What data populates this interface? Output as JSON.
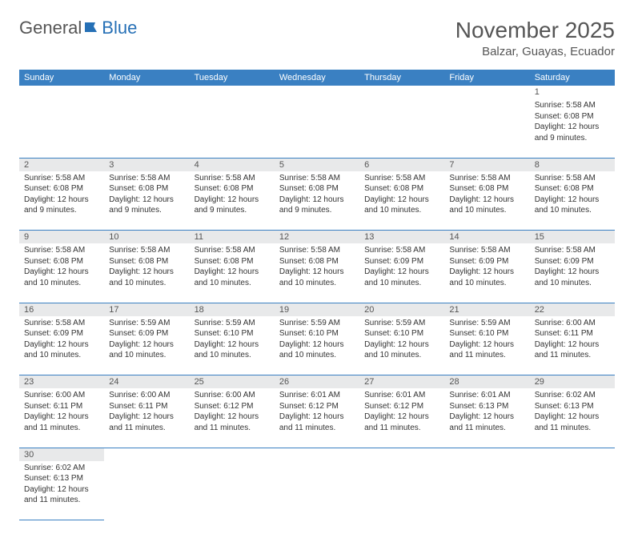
{
  "logo": {
    "text_a": "General",
    "text_b": "Blue"
  },
  "title": "November 2025",
  "location": "Balzar, Guayas, Ecuador",
  "colors": {
    "header_bg": "#3a80c2",
    "header_text": "#ffffff",
    "daynum_bg": "#e8e9ea",
    "row_divider": "#3a80c2",
    "text": "#333333",
    "title_text": "#555555",
    "logo_blue": "#2670b6"
  },
  "day_headers": [
    "Sunday",
    "Monday",
    "Tuesday",
    "Wednesday",
    "Thursday",
    "Friday",
    "Saturday"
  ],
  "layout": {
    "cols": 7,
    "rows": 6,
    "month_start_col": 6
  },
  "days": [
    {
      "n": 1,
      "sr": "5:58 AM",
      "ss": "6:08 PM",
      "dl": "12 hours and 9 minutes."
    },
    {
      "n": 2,
      "sr": "5:58 AM",
      "ss": "6:08 PM",
      "dl": "12 hours and 9 minutes."
    },
    {
      "n": 3,
      "sr": "5:58 AM",
      "ss": "6:08 PM",
      "dl": "12 hours and 9 minutes."
    },
    {
      "n": 4,
      "sr": "5:58 AM",
      "ss": "6:08 PM",
      "dl": "12 hours and 9 minutes."
    },
    {
      "n": 5,
      "sr": "5:58 AM",
      "ss": "6:08 PM",
      "dl": "12 hours and 9 minutes."
    },
    {
      "n": 6,
      "sr": "5:58 AM",
      "ss": "6:08 PM",
      "dl": "12 hours and 10 minutes."
    },
    {
      "n": 7,
      "sr": "5:58 AM",
      "ss": "6:08 PM",
      "dl": "12 hours and 10 minutes."
    },
    {
      "n": 8,
      "sr": "5:58 AM",
      "ss": "6:08 PM",
      "dl": "12 hours and 10 minutes."
    },
    {
      "n": 9,
      "sr": "5:58 AM",
      "ss": "6:08 PM",
      "dl": "12 hours and 10 minutes."
    },
    {
      "n": 10,
      "sr": "5:58 AM",
      "ss": "6:08 PM",
      "dl": "12 hours and 10 minutes."
    },
    {
      "n": 11,
      "sr": "5:58 AM",
      "ss": "6:08 PM",
      "dl": "12 hours and 10 minutes."
    },
    {
      "n": 12,
      "sr": "5:58 AM",
      "ss": "6:08 PM",
      "dl": "12 hours and 10 minutes."
    },
    {
      "n": 13,
      "sr": "5:58 AM",
      "ss": "6:09 PM",
      "dl": "12 hours and 10 minutes."
    },
    {
      "n": 14,
      "sr": "5:58 AM",
      "ss": "6:09 PM",
      "dl": "12 hours and 10 minutes."
    },
    {
      "n": 15,
      "sr": "5:58 AM",
      "ss": "6:09 PM",
      "dl": "12 hours and 10 minutes."
    },
    {
      "n": 16,
      "sr": "5:58 AM",
      "ss": "6:09 PM",
      "dl": "12 hours and 10 minutes."
    },
    {
      "n": 17,
      "sr": "5:59 AM",
      "ss": "6:09 PM",
      "dl": "12 hours and 10 minutes."
    },
    {
      "n": 18,
      "sr": "5:59 AM",
      "ss": "6:10 PM",
      "dl": "12 hours and 10 minutes."
    },
    {
      "n": 19,
      "sr": "5:59 AM",
      "ss": "6:10 PM",
      "dl": "12 hours and 10 minutes."
    },
    {
      "n": 20,
      "sr": "5:59 AM",
      "ss": "6:10 PM",
      "dl": "12 hours and 10 minutes."
    },
    {
      "n": 21,
      "sr": "5:59 AM",
      "ss": "6:10 PM",
      "dl": "12 hours and 11 minutes."
    },
    {
      "n": 22,
      "sr": "6:00 AM",
      "ss": "6:11 PM",
      "dl": "12 hours and 11 minutes."
    },
    {
      "n": 23,
      "sr": "6:00 AM",
      "ss": "6:11 PM",
      "dl": "12 hours and 11 minutes."
    },
    {
      "n": 24,
      "sr": "6:00 AM",
      "ss": "6:11 PM",
      "dl": "12 hours and 11 minutes."
    },
    {
      "n": 25,
      "sr": "6:00 AM",
      "ss": "6:12 PM",
      "dl": "12 hours and 11 minutes."
    },
    {
      "n": 26,
      "sr": "6:01 AM",
      "ss": "6:12 PM",
      "dl": "12 hours and 11 minutes."
    },
    {
      "n": 27,
      "sr": "6:01 AM",
      "ss": "6:12 PM",
      "dl": "12 hours and 11 minutes."
    },
    {
      "n": 28,
      "sr": "6:01 AM",
      "ss": "6:13 PM",
      "dl": "12 hours and 11 minutes."
    },
    {
      "n": 29,
      "sr": "6:02 AM",
      "ss": "6:13 PM",
      "dl": "12 hours and 11 minutes."
    },
    {
      "n": 30,
      "sr": "6:02 AM",
      "ss": "6:13 PM",
      "dl": "12 hours and 11 minutes."
    }
  ],
  "labels": {
    "sunrise": "Sunrise:",
    "sunset": "Sunset:",
    "daylight": "Daylight:"
  }
}
